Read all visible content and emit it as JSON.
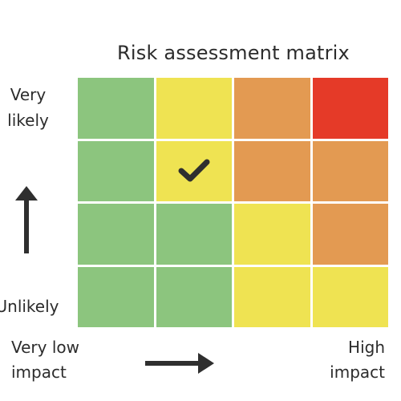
{
  "title": "Risk assessment matrix",
  "y_axis": {
    "top_label": "Very likely",
    "bottom_label": "Unlikely"
  },
  "x_axis": {
    "left_label": "Very low impact",
    "right_label": "High impact"
  },
  "colors": {
    "green": "#8cc57e",
    "yellow": "#efe352",
    "orange": "#e39a52",
    "red": "#e53a28",
    "arrow": "#2f2f2f",
    "check": "#2f2f2f"
  },
  "matrix": [
    [
      "green",
      "yellow",
      "orange",
      "red"
    ],
    [
      "green",
      "yellow",
      "orange",
      "orange"
    ],
    [
      "green",
      "green",
      "yellow",
      "orange"
    ],
    [
      "green",
      "green",
      "yellow",
      "yellow"
    ]
  ],
  "selected_cell": {
    "row": 1,
    "col": 1,
    "icon": "check-icon"
  }
}
